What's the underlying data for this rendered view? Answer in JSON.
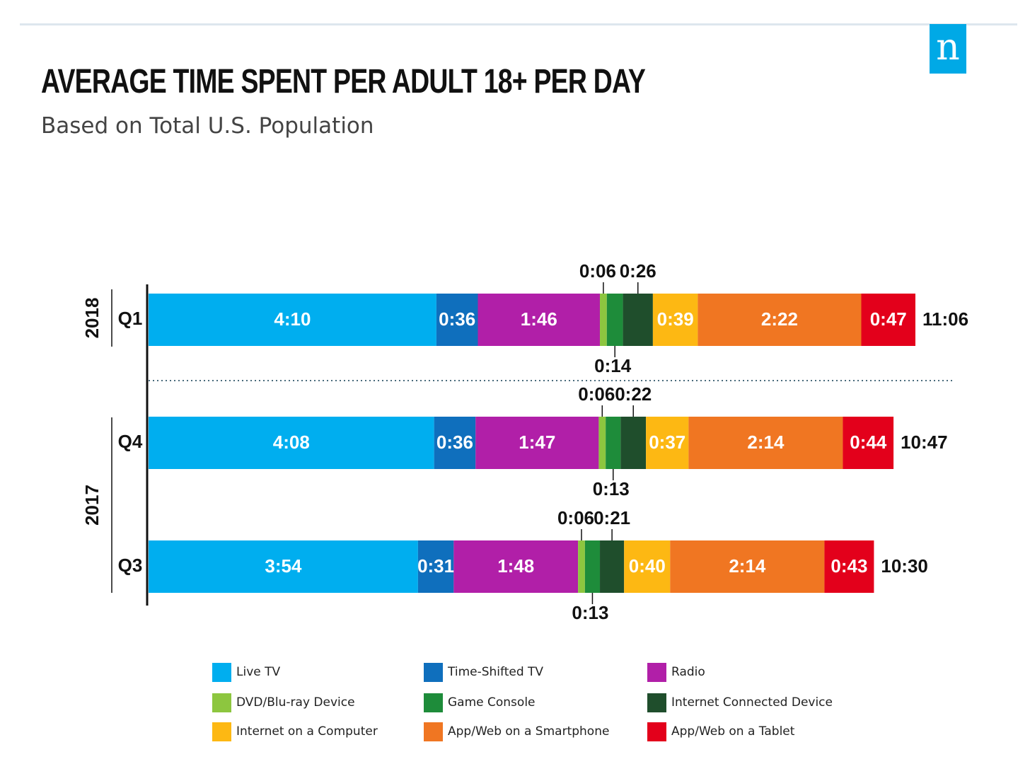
{
  "logo_letter": "n",
  "chart_data": {
    "type": "bar",
    "orientation": "horizontal",
    "stacked": true,
    "title": "AVERAGE TIME SPENT PER ADULT 18+ PER DAY",
    "subtitle": "Based on Total U.S. Population",
    "unit": "hours:minutes",
    "rows": [
      {
        "year": "2018",
        "quarter": "Q1",
        "total_label": "11:06"
      },
      {
        "year": "2017",
        "quarter": "Q4",
        "total_label": "10:47"
      },
      {
        "year": "2017",
        "quarter": "Q3",
        "total_label": "10:30"
      }
    ],
    "year_groups": [
      {
        "label": "2018",
        "rows": [
          0
        ]
      },
      {
        "label": "2017",
        "rows": [
          1,
          2
        ]
      }
    ],
    "series": [
      {
        "name": "Live TV",
        "color": "#00aeef",
        "values_min": [
          250,
          248,
          234
        ],
        "labels": [
          "4:10",
          "4:08",
          "3:54"
        ],
        "label_pos": "inside"
      },
      {
        "name": "Time-Shifted TV",
        "color": "#0f6fbd",
        "values_min": [
          36,
          36,
          31
        ],
        "labels": [
          "0:36",
          "0:36",
          "0:31"
        ],
        "label_pos": "inside"
      },
      {
        "name": "Radio",
        "color": "#b11fa8",
        "values_min": [
          106,
          107,
          108
        ],
        "labels": [
          "1:46",
          "1:47",
          "1:48"
        ],
        "label_pos": "inside"
      },
      {
        "name": "DVD/Blu-ray Device",
        "color": "#8dc63f",
        "values_min": [
          6,
          6,
          6
        ],
        "labels": [
          "0:06",
          "0:06",
          "0:06"
        ],
        "label_pos": "above"
      },
      {
        "name": "Game Console",
        "color": "#1e8c3a",
        "values_min": [
          14,
          13,
          13
        ],
        "labels": [
          "0:14",
          "0:13",
          "0:13"
        ],
        "label_pos": "below"
      },
      {
        "name": "Internet Connected Device",
        "color": "#1f4e2c",
        "values_min": [
          26,
          22,
          21
        ],
        "labels": [
          "0:26",
          "0:22",
          "0:21"
        ],
        "label_pos": "above"
      },
      {
        "name": "Internet on a Computer",
        "color": "#fdb813",
        "values_min": [
          39,
          37,
          40
        ],
        "labels": [
          "0:39",
          "0:37",
          "0:40"
        ],
        "label_pos": "inside"
      },
      {
        "name": "App/Web on a Smartphone",
        "color": "#f07622",
        "values_min": [
          142,
          134,
          134
        ],
        "labels": [
          "2:22",
          "2:14",
          "2:14"
        ],
        "label_pos": "inside"
      },
      {
        "name": "App/Web on a Tablet",
        "color": "#e3001b",
        "values_min": [
          47,
          44,
          43
        ],
        "labels": [
          "0:47",
          "0:44",
          "0:43"
        ],
        "label_pos": "inside"
      }
    ],
    "legend": [
      "Live TV",
      "Time-Shifted TV",
      "Radio",
      "DVD/Blu-ray Device",
      "Game Console",
      "Internet Connected Device",
      "Internet on a Computer",
      "App/Web on a Smartphone",
      "App/Web on a Tablet"
    ],
    "legend_placement": "bottom"
  }
}
